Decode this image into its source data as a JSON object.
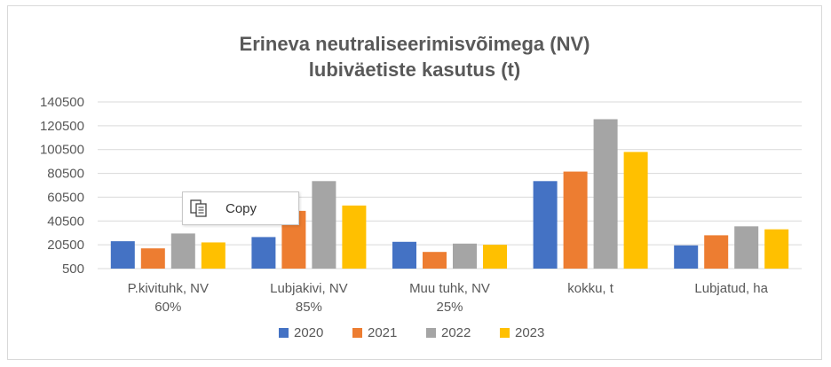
{
  "chart_data": {
    "type": "bar",
    "title_lines": [
      "Erineva neutraliseerimisvõimega (NV)",
      "lubiväetiste  kasutus (t)"
    ],
    "categories": [
      [
        "P.kivituhk, NV",
        "60%"
      ],
      [
        "Lubjakivi, NV",
        "85%"
      ],
      [
        "Muu tuhk, NV",
        "25%"
      ],
      [
        "kokku, t"
      ],
      [
        "Lubjatud, ha"
      ]
    ],
    "series": [
      {
        "name": "2020",
        "color": "#4472c4",
        "values": [
          23500,
          27000,
          23000,
          74000,
          20000
        ]
      },
      {
        "name": "2021",
        "color": "#ed7d31",
        "values": [
          17500,
          49000,
          14500,
          82000,
          28500
        ]
      },
      {
        "name": "2022",
        "color": "#a5a5a5",
        "values": [
          30000,
          74000,
          21500,
          126000,
          36000
        ]
      },
      {
        "name": "2023",
        "color": "#ffc000",
        "values": [
          22500,
          53500,
          20500,
          98500,
          33500
        ]
      }
    ],
    "y_ticks": [
      "140500",
      "120500",
      "100500",
      "80500",
      "60500",
      "40500",
      "20500",
      "500"
    ],
    "ylim": [
      500,
      140500
    ],
    "grid": true,
    "legend_position": "bottom"
  },
  "context_menu": {
    "copy_label": "Copy",
    "copy_icon": "copy-icon"
  }
}
